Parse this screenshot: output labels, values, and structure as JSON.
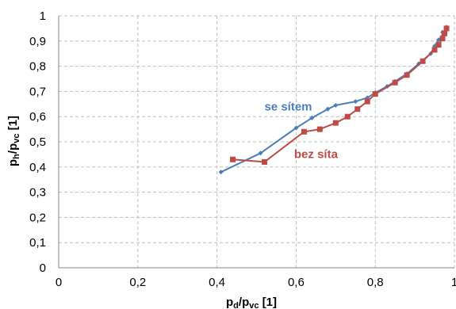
{
  "chart_data": {
    "type": "line",
    "xlim": [
      0,
      1
    ],
    "ylim": [
      0,
      1
    ],
    "x_ticks": [
      "0",
      "0,2",
      "0,4",
      "0,6",
      "0,8",
      "1"
    ],
    "y_ticks": [
      "0",
      "0,1",
      "0,2",
      "0,3",
      "0,4",
      "0,5",
      "0,6",
      "0,7",
      "0,8",
      "0,9",
      "1"
    ],
    "x_tick_values": [
      0,
      0.2,
      0.4,
      0.6,
      0.8,
      1.0
    ],
    "y_tick_values": [
      0,
      0.1,
      0.2,
      0.3,
      0.4,
      0.5,
      0.6,
      0.7,
      0.8,
      0.9,
      1.0
    ],
    "xlabel": {
      "main": "p",
      "sub1": "d",
      "mid": "/p",
      "sub2": "vc",
      "unit": " [1]"
    },
    "ylabel": {
      "main": "p",
      "sub1": "h",
      "mid": "/p",
      "sub2": "vc",
      "unit": " [1]"
    },
    "grid": true,
    "series": [
      {
        "name": "se sítem",
        "color": "#4a7ebb",
        "marker": "diamond",
        "x": [
          0.41,
          0.51,
          0.6,
          0.64,
          0.68,
          0.7,
          0.75,
          0.78,
          0.8,
          0.83,
          0.85,
          0.88,
          0.91,
          0.94,
          0.95,
          0.96,
          0.97,
          0.97,
          0.98,
          0.98
        ],
        "y": [
          0.38,
          0.455,
          0.555,
          0.595,
          0.63,
          0.645,
          0.66,
          0.675,
          0.695,
          0.72,
          0.74,
          0.77,
          0.81,
          0.85,
          0.88,
          0.905,
          0.92,
          0.935,
          0.945,
          0.955
        ]
      },
      {
        "name": "bez síta",
        "color": "#be4b48",
        "marker": "square",
        "x": [
          0.44,
          0.52,
          0.62,
          0.66,
          0.7,
          0.73,
          0.755,
          0.78,
          0.8,
          0.85,
          0.88,
          0.92,
          0.95,
          0.96,
          0.97,
          0.975,
          0.98
        ],
        "y": [
          0.43,
          0.42,
          0.54,
          0.55,
          0.575,
          0.6,
          0.63,
          0.66,
          0.69,
          0.735,
          0.765,
          0.82,
          0.865,
          0.885,
          0.91,
          0.93,
          0.95
        ]
      }
    ]
  }
}
